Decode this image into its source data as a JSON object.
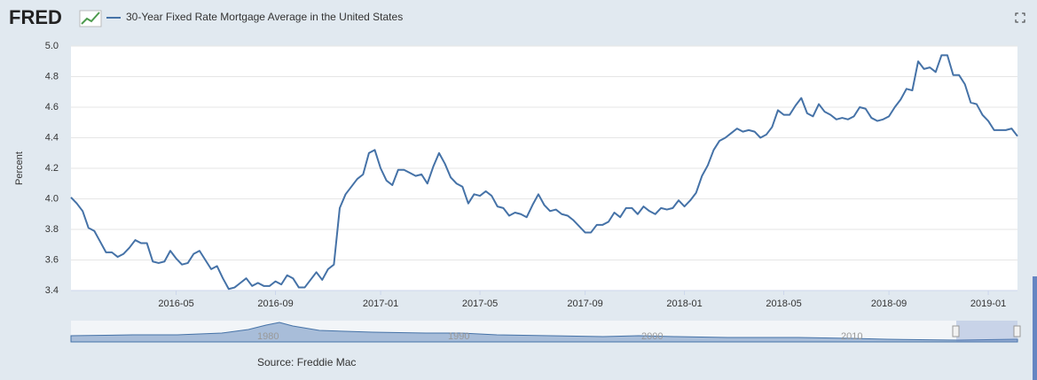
{
  "logo": "FRED",
  "source": "Source: Freddie Mac",
  "navigator_labels": [
    "1980",
    "1990",
    "2000",
    "2010"
  ],
  "chart_data": {
    "type": "line",
    "title": "30-Year Fixed Rate Mortgage Average in the United States",
    "ylabel": "Percent",
    "ylim": [
      3.4,
      5.0
    ],
    "yticks": [
      3.4,
      3.6,
      3.8,
      {
        "value": 4,
        "label": "4.0"
      },
      4.2,
      4.4,
      4.6,
      4.8,
      {
        "value": 5,
        "label": "5.0"
      }
    ],
    "grid": true,
    "categories": [
      null,
      null,
      null,
      null,
      null,
      null,
      null,
      null,
      null,
      null,
      null,
      null,
      null,
      null,
      null,
      null,
      null,
      null,
      "2016-05",
      null,
      null,
      null,
      null,
      null,
      null,
      null,
      null,
      null,
      null,
      null,
      null,
      null,
      null,
      null,
      null,
      "2016-09",
      null,
      null,
      null,
      null,
      null,
      null,
      null,
      null,
      null,
      null,
      null,
      null,
      null,
      null,
      null,
      null,
      null,
      "2017-01",
      null,
      null,
      null,
      null,
      null,
      null,
      null,
      null,
      null,
      null,
      null,
      null,
      null,
      null,
      null,
      null,
      "2017-05",
      null,
      null,
      null,
      null,
      null,
      null,
      null,
      null,
      null,
      null,
      null,
      null,
      null,
      null,
      null,
      null,
      null,
      "2017-09",
      null,
      null,
      null,
      null,
      null,
      null,
      null,
      null,
      null,
      null,
      null,
      null,
      null,
      null,
      null,
      null,
      "2018-01",
      null,
      null,
      null,
      null,
      null,
      null,
      null,
      null,
      null,
      null,
      null,
      null,
      null,
      null,
      null,
      null,
      "2018-05",
      null,
      null,
      null,
      null,
      null,
      null,
      null,
      null,
      null,
      null,
      null,
      null,
      null,
      null,
      null,
      null,
      null,
      "2018-09",
      null,
      null,
      null,
      null,
      null,
      null,
      null,
      null,
      null,
      null,
      null,
      null,
      null,
      null,
      null,
      null,
      "2019-01",
      null,
      null,
      null,
      null,
      null
    ],
    "series": [
      {
        "name": "30-Year Fixed Rate Mortgage Average in the United States",
        "color": "#4572a7",
        "values": [
          4.01,
          3.97,
          3.92,
          3.81,
          3.79,
          3.72,
          3.65,
          3.65,
          3.62,
          3.64,
          3.68,
          3.73,
          3.71,
          3.71,
          3.59,
          3.58,
          3.59,
          3.66,
          3.61,
          3.57,
          3.58,
          3.64,
          3.66,
          3.6,
          3.54,
          3.56,
          3.48,
          3.41,
          3.42,
          3.45,
          3.48,
          3.43,
          3.45,
          3.43,
          3.43,
          3.46,
          3.44,
          3.5,
          3.48,
          3.42,
          3.42,
          3.47,
          3.52,
          3.47,
          3.54,
          3.57,
          3.94,
          4.03,
          4.08,
          4.13,
          4.16,
          4.3,
          4.32,
          4.2,
          4.12,
          4.09,
          4.19,
          4.19,
          4.17,
          4.15,
          4.16,
          4.1,
          4.21,
          4.3,
          4.23,
          4.14,
          4.1,
          4.08,
          3.97,
          4.03,
          4.02,
          4.05,
          4.02,
          3.95,
          3.94,
          3.89,
          3.91,
          3.9,
          3.88,
          3.96,
          4.03,
          3.96,
          3.92,
          3.93,
          3.9,
          3.89,
          3.86,
          3.82,
          3.78,
          3.78,
          3.83,
          3.83,
          3.85,
          3.91,
          3.88,
          3.94,
          3.94,
          3.9,
          3.95,
          3.92,
          3.9,
          3.94,
          3.93,
          3.94,
          3.99,
          3.95,
          3.99,
          4.04,
          4.15,
          4.22,
          4.32,
          4.38,
          4.4,
          4.43,
          4.46,
          4.44,
          4.45,
          4.44,
          4.4,
          4.42,
          4.47,
          4.58,
          4.55,
          4.55,
          4.61,
          4.66,
          4.56,
          4.54,
          4.62,
          4.57,
          4.55,
          4.52,
          4.53,
          4.52,
          4.54,
          4.6,
          4.59,
          4.53,
          4.51,
          4.52,
          4.54,
          4.6,
          4.65,
          4.72,
          4.71,
          4.9,
          4.85,
          4.86,
          4.83,
          4.94,
          4.94,
          4.81,
          4.81,
          4.75,
          4.63,
          4.62,
          4.55,
          4.51,
          4.45,
          4.45,
          4.45,
          4.46,
          4.41
        ]
      }
    ]
  }
}
